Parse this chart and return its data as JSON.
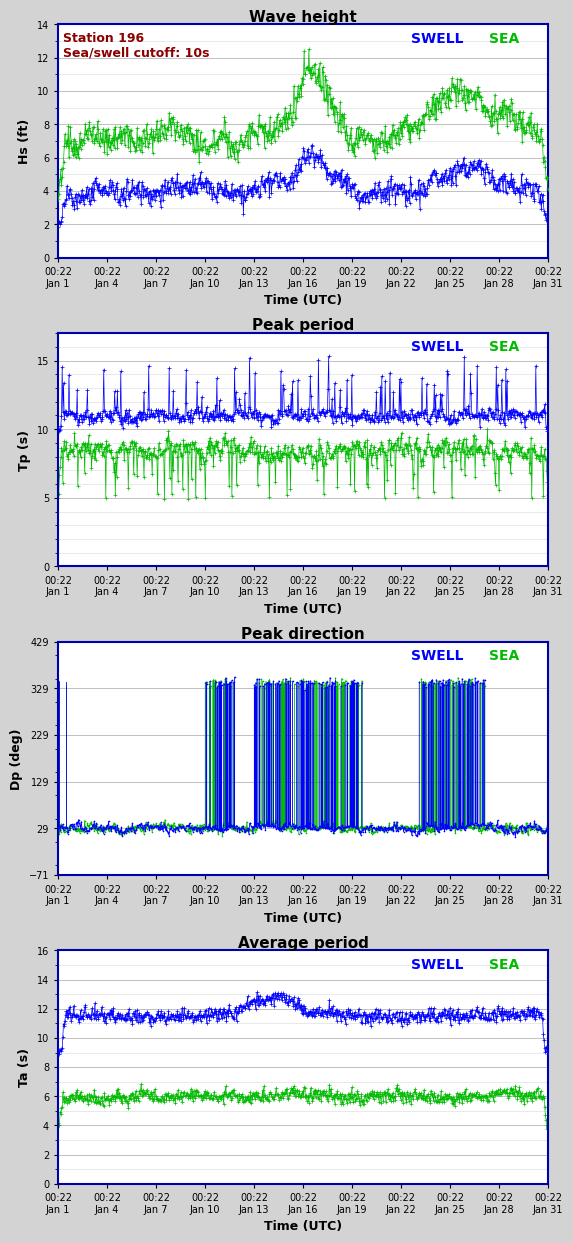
{
  "title1": "Wave height",
  "title2": "Peak period",
  "title3": "Peak direction",
  "title4": "Average period",
  "station_text": "Station 196\nSea/swell cutoff: 10s",
  "ylabel1": "Hs (ft)",
  "ylabel2": "Tp (s)",
  "ylabel3": "Dp (deg)",
  "ylabel4": "Ta (s)",
  "xlabel": "Time (UTC)",
  "swell_color": "#0000ff",
  "sea_color": "#00bb00",
  "bg_color": "#d3d3d3",
  "plot_bg": "#ffffff",
  "panel_border_color": "#0000aa",
  "n_points": 720,
  "ylim1": [
    0,
    14
  ],
  "ylim2": [
    0,
    17
  ],
  "ylim3": [
    -71,
    429
  ],
  "ylim4": [
    0,
    16
  ],
  "yticks1": [
    0,
    2,
    4,
    6,
    8,
    10,
    12,
    14
  ],
  "yticks2": [
    0,
    5,
    10,
    15
  ],
  "yticks3": [
    -71,
    29,
    129,
    229,
    329,
    429
  ],
  "yticks4": [
    0,
    2,
    4,
    6,
    8,
    10,
    12,
    14,
    16
  ],
  "tick_dates": [
    "00:22\nJan 1",
    "00:22\nJan 4",
    "00:22\nJan 7",
    "00:22\nJan 10",
    "00:22\nJan 13",
    "00:22\nJan 16",
    "00:22\nJan 19",
    "00:22\nJan 22",
    "00:22\nJan 25",
    "00:22\nJan 28",
    "00:22\nJan 31"
  ],
  "n_ticks": 11
}
